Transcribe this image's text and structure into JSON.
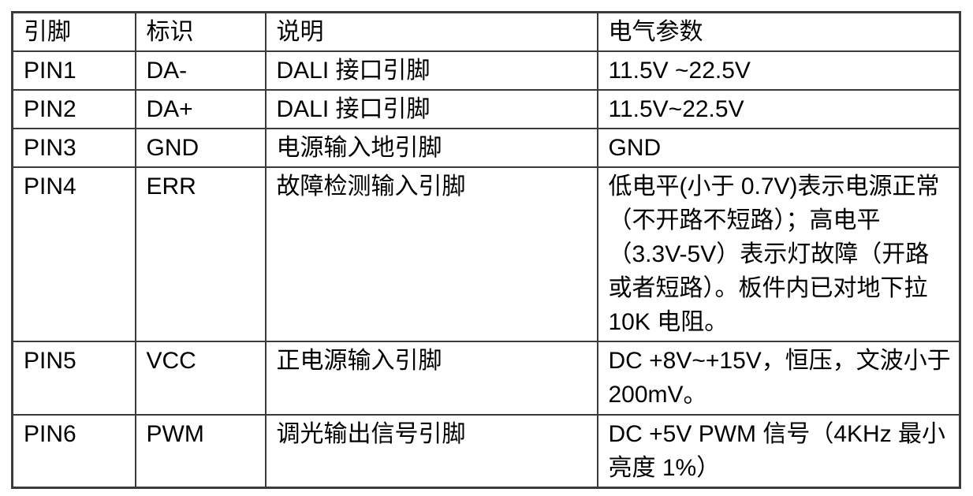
{
  "colors": {
    "border": "#3a3a3a",
    "text": "#000000",
    "background": "#ffffff"
  },
  "table": {
    "headers": {
      "pin": "引脚",
      "label": "标识",
      "desc": "说明",
      "params": "电气参数"
    },
    "rows": [
      {
        "pin": "PIN1",
        "label": "DA-",
        "desc": "DALI 接口引脚",
        "params": "11.5V ~22.5V"
      },
      {
        "pin": "PIN2",
        "label": "DA+",
        "desc": "DALI 接口引脚",
        "params": "11.5V~22.5V"
      },
      {
        "pin": "PIN3",
        "label": "GND",
        "desc": "电源输入地引脚",
        "params": "GND"
      },
      {
        "pin": "PIN4",
        "label": "ERR",
        "desc": "故障检测输入引脚",
        "params": "低电平(小于 0.7V)表示电源正常（不开路不短路）；高电平（3.3V-5V）表示灯故障（开路或者短路）。板件内已对地下拉 10K 电阻。"
      },
      {
        "pin": "PIN5",
        "label": "VCC",
        "desc": "正电源输入引脚",
        "params": "DC +8V~+15V，恒压，文波小于 200mV。"
      },
      {
        "pin": "PIN6",
        "label": "PWM",
        "desc": "调光输出信号引脚",
        "params": "DC +5V PWM 信号（4KHz 最小亮度 1%）"
      }
    ]
  }
}
